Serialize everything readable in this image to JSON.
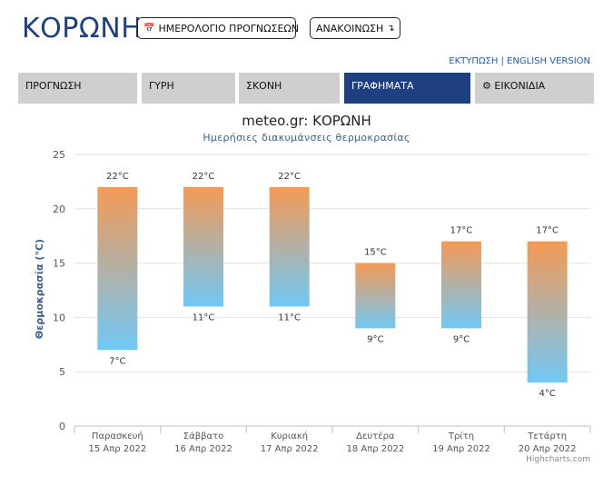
{
  "header": {
    "title": "ΚΟΡΩΝΗ",
    "calendar_button": "ΗΜΕΡΟΛΟΓΙΟ ΠΡΟΓΝΩΣΕΩΝ",
    "announcements_button": "ΑΝΑΚΟΙΝΩΣΗ",
    "print_link": "ΕΚΤΥΠΩΣΗ",
    "separator": "|",
    "english_link": "ENGLISH VERSION"
  },
  "tabs": [
    {
      "label": "ΠΡΟΓΝΩΣΗ",
      "active": false
    },
    {
      "label": "ΓΥΡΗ",
      "active": false
    },
    {
      "label": "ΣΚΟΝΗ",
      "active": false
    },
    {
      "label": "ΓΡΑΦΗΜΑΤΑ",
      "active": true
    },
    {
      "label": "ΕΙΚΟΝΙΔΙΑ",
      "active": false,
      "icon": "gear-icon"
    }
  ],
  "colors": {
    "brand": "#1e3f80",
    "bar_top": "#f59a56",
    "bar_bottom": "#70c8f5",
    "tab_inactive": "#cfcfcf"
  },
  "chart_data": {
    "type": "bar",
    "title": "meteo.gr: ΚΟΡΩΝΗ",
    "subtitle": "Ημερήσιες διακυμάνσεις θερμοκρασίας",
    "ylabel": "Θερμοκρασία (°C)",
    "ylim": [
      0,
      25
    ],
    "yticks": [
      0,
      5,
      10,
      15,
      20,
      25
    ],
    "grid": true,
    "categories": [
      {
        "day": "Παρασκευή",
        "date": "15 Απρ 2022"
      },
      {
        "day": "Σάββατο",
        "date": "16 Απρ 2022"
      },
      {
        "day": "Κυριακή",
        "date": "17 Απρ 2022"
      },
      {
        "day": "Δευτέρα",
        "date": "18 Απρ 2022"
      },
      {
        "day": "Τρίτη",
        "date": "19 Απρ 2022"
      },
      {
        "day": "Τετάρτη",
        "date": "20 Απρ 2022"
      }
    ],
    "low": [
      7,
      11,
      11,
      9,
      9,
      4
    ],
    "high": [
      22,
      22,
      22,
      15,
      17,
      17
    ],
    "unit": "°C",
    "credit": "Highcharts.com"
  }
}
